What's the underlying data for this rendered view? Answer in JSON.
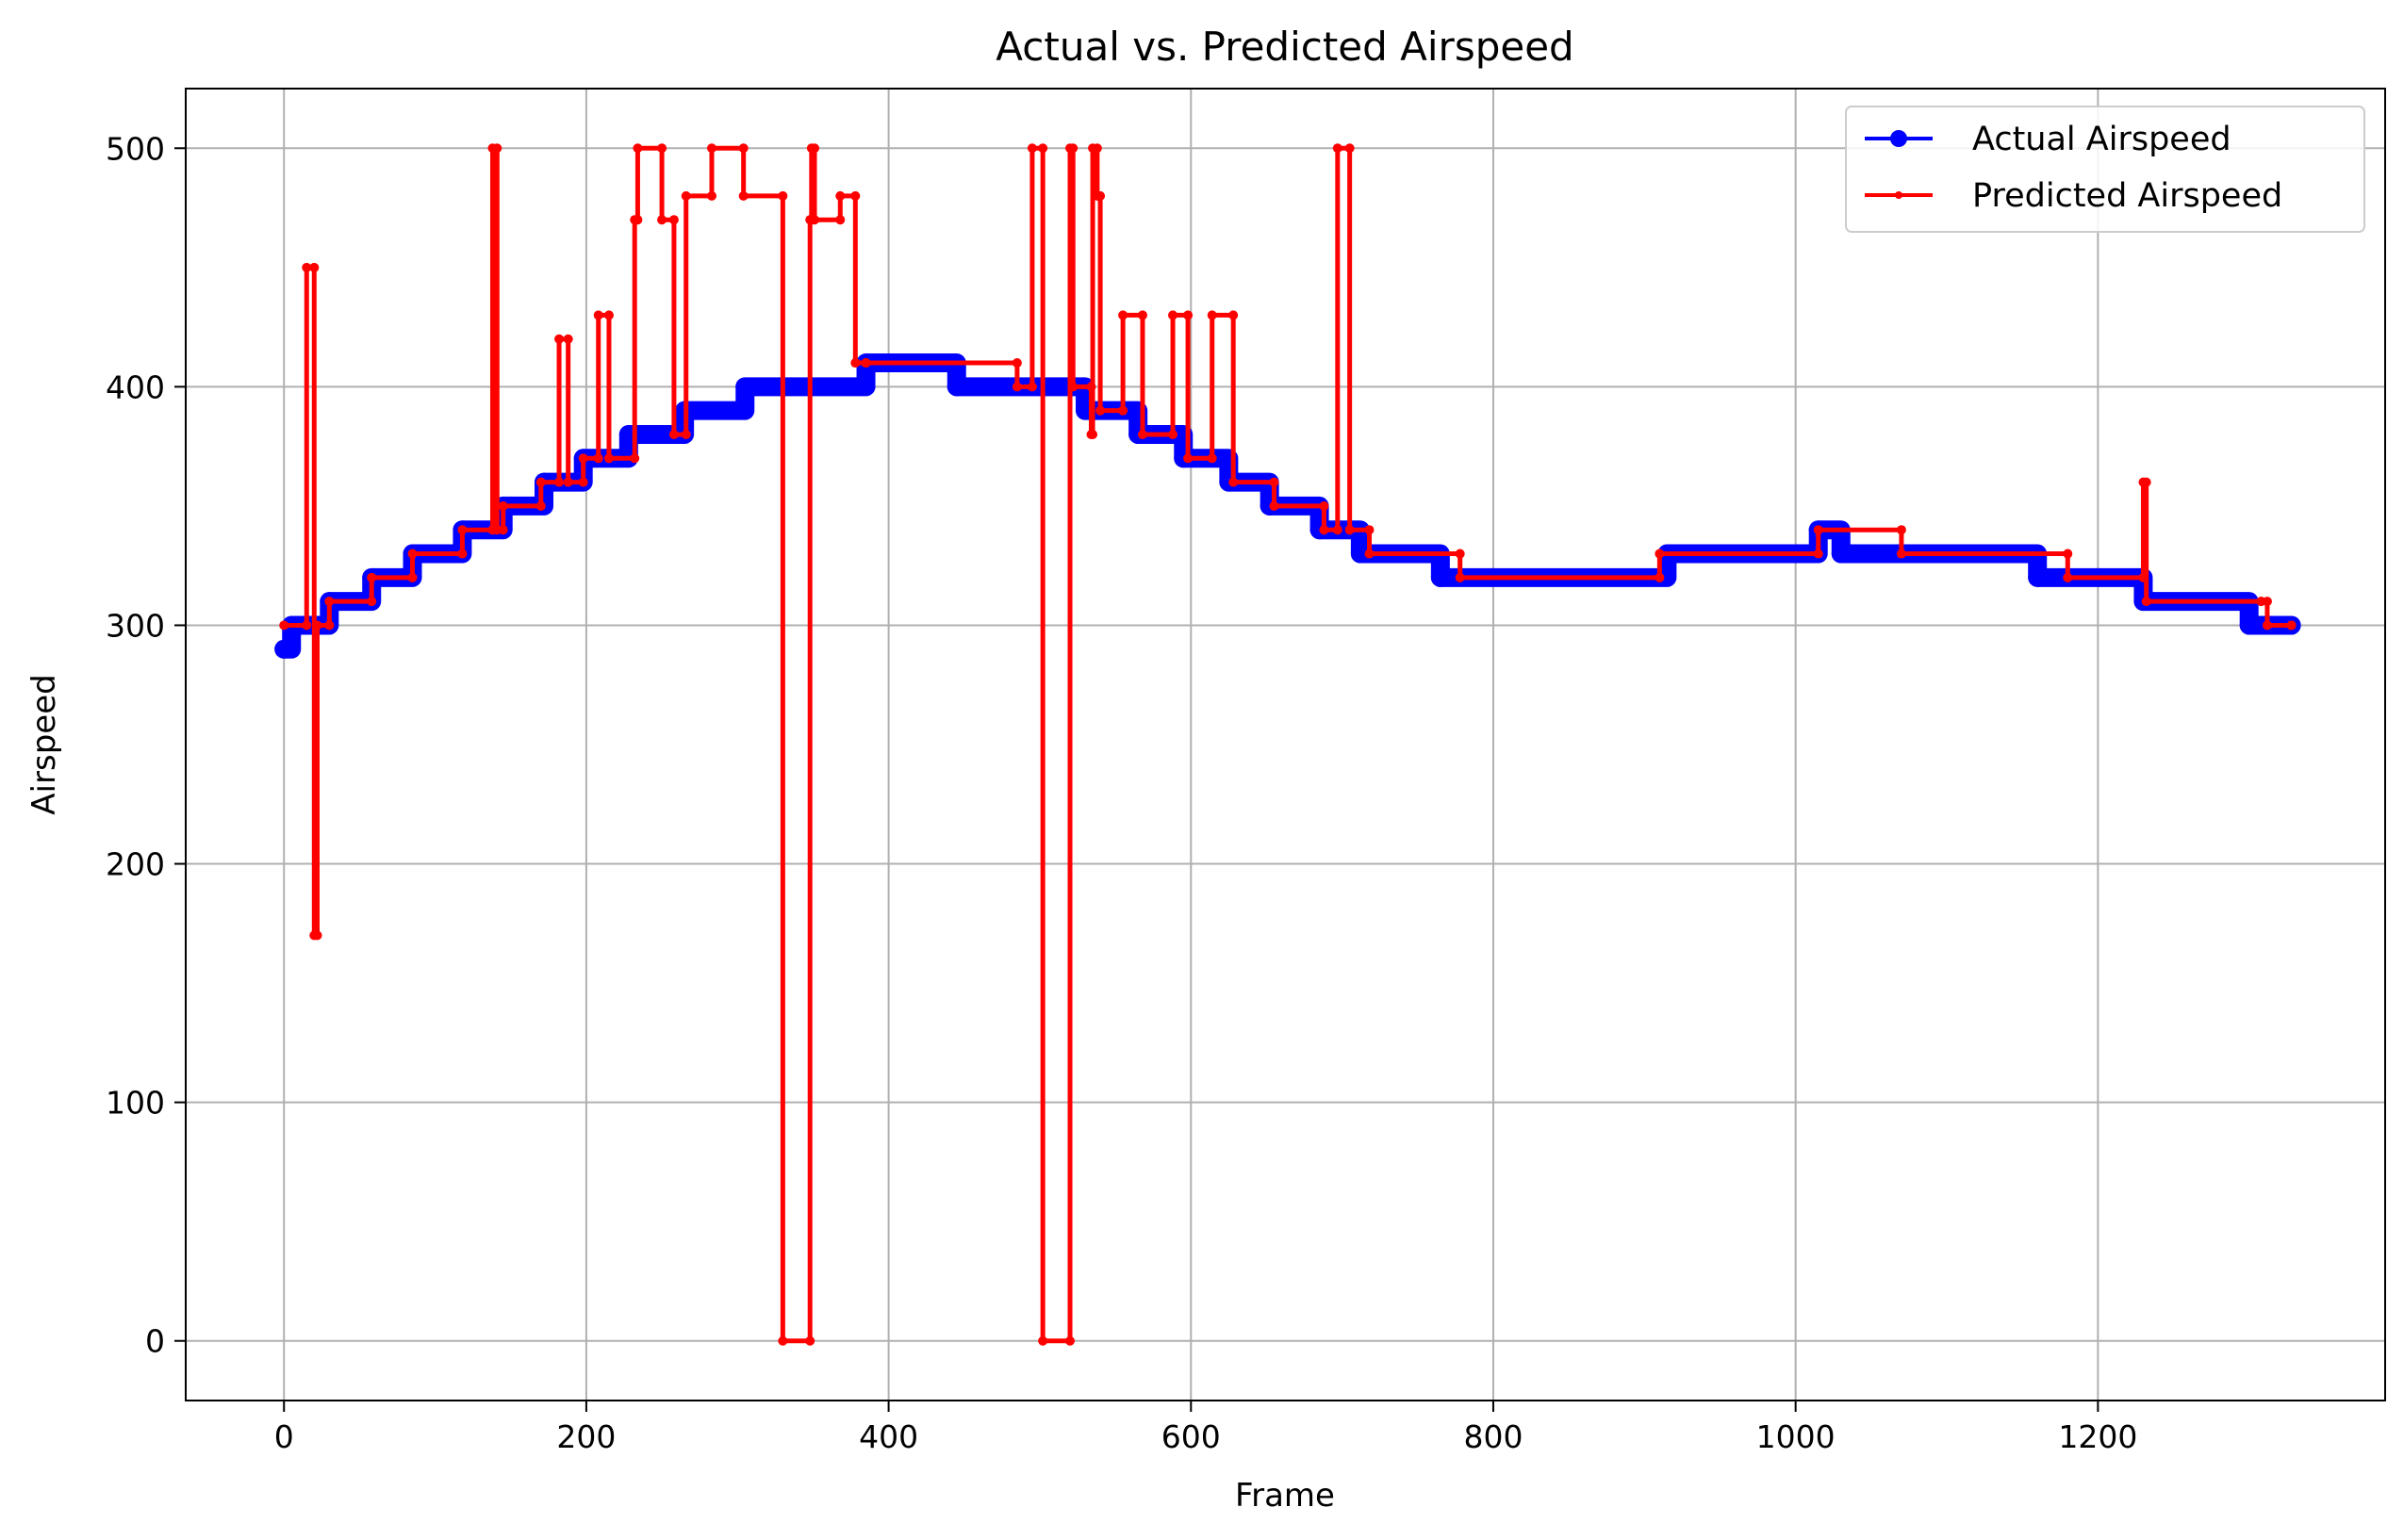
{
  "chart_data": {
    "type": "line",
    "title": "Actual vs. Predicted Airspeed",
    "xlabel": "Frame",
    "ylabel": "Airspeed",
    "xlim": [
      -65,
      1390
    ],
    "ylim": [
      -25,
      525
    ],
    "xticks": [
      0,
      200,
      400,
      600,
      800,
      1000,
      1200
    ],
    "yticks": [
      0,
      100,
      200,
      300,
      400,
      500
    ],
    "grid": true,
    "legend_position": "top-right",
    "series": [
      {
        "name": "Actual Airspeed",
        "color": "#0000ff",
        "marker": "circle-large",
        "steps": [
          [
            0,
            290
          ],
          [
            5,
            300
          ],
          [
            30,
            310
          ],
          [
            58,
            320
          ],
          [
            85,
            330
          ],
          [
            118,
            340
          ],
          [
            145,
            350
          ],
          [
            172,
            360
          ],
          [
            198,
            370
          ],
          [
            228,
            380
          ],
          [
            265,
            390
          ],
          [
            305,
            400
          ],
          [
            385,
            410
          ],
          [
            445,
            400
          ],
          [
            530,
            390
          ],
          [
            565,
            380
          ],
          [
            595,
            370
          ],
          [
            625,
            360
          ],
          [
            652,
            350
          ],
          [
            685,
            340
          ],
          [
            712,
            330
          ],
          [
            765,
            320
          ],
          [
            915,
            330
          ],
          [
            1015,
            340
          ],
          [
            1030,
            330
          ],
          [
            1160,
            320
          ],
          [
            1230,
            310
          ],
          [
            1300,
            300
          ],
          [
            1328,
            300
          ]
        ]
      },
      {
        "name": "Predicted Airspeed",
        "color": "#ff0000",
        "marker": "dot-small",
        "steps": [
          [
            0,
            300
          ],
          [
            15,
            450
          ],
          [
            20,
            170
          ],
          [
            22,
            300
          ],
          [
            30,
            310
          ],
          [
            58,
            320
          ],
          [
            85,
            330
          ],
          [
            118,
            340
          ],
          [
            138,
            500
          ],
          [
            141,
            340
          ],
          [
            145,
            350
          ],
          [
            170,
            360
          ],
          [
            182,
            420
          ],
          [
            188,
            360
          ],
          [
            198,
            370
          ],
          [
            208,
            430
          ],
          [
            215,
            370
          ],
          [
            232,
            470
          ],
          [
            234,
            500
          ],
          [
            250,
            470
          ],
          [
            258,
            380
          ],
          [
            266,
            480
          ],
          [
            283,
            500
          ],
          [
            304,
            480
          ],
          [
            330,
            0
          ],
          [
            348,
            470
          ],
          [
            349,
            500
          ],
          [
            351,
            470
          ],
          [
            368,
            480
          ],
          [
            378,
            410
          ],
          [
            385,
            410
          ],
          [
            485,
            400
          ],
          [
            495,
            500
          ],
          [
            502,
            0
          ],
          [
            520,
            500
          ],
          [
            522,
            400
          ],
          [
            534,
            380
          ],
          [
            535,
            500
          ],
          [
            538,
            480
          ],
          [
            540,
            390
          ],
          [
            555,
            430
          ],
          [
            568,
            380
          ],
          [
            588,
            430
          ],
          [
            598,
            370
          ],
          [
            614,
            430
          ],
          [
            628,
            360
          ],
          [
            655,
            350
          ],
          [
            688,
            340
          ],
          [
            697,
            500
          ],
          [
            705,
            340
          ],
          [
            718,
            330
          ],
          [
            778,
            320
          ],
          [
            910,
            330
          ],
          [
            1015,
            340
          ],
          [
            1070,
            330
          ],
          [
            1180,
            320
          ],
          [
            1230,
            360
          ],
          [
            1232,
            310
          ],
          [
            1308,
            310
          ],
          [
            1312,
            300
          ],
          [
            1328,
            300
          ]
        ]
      }
    ]
  }
}
